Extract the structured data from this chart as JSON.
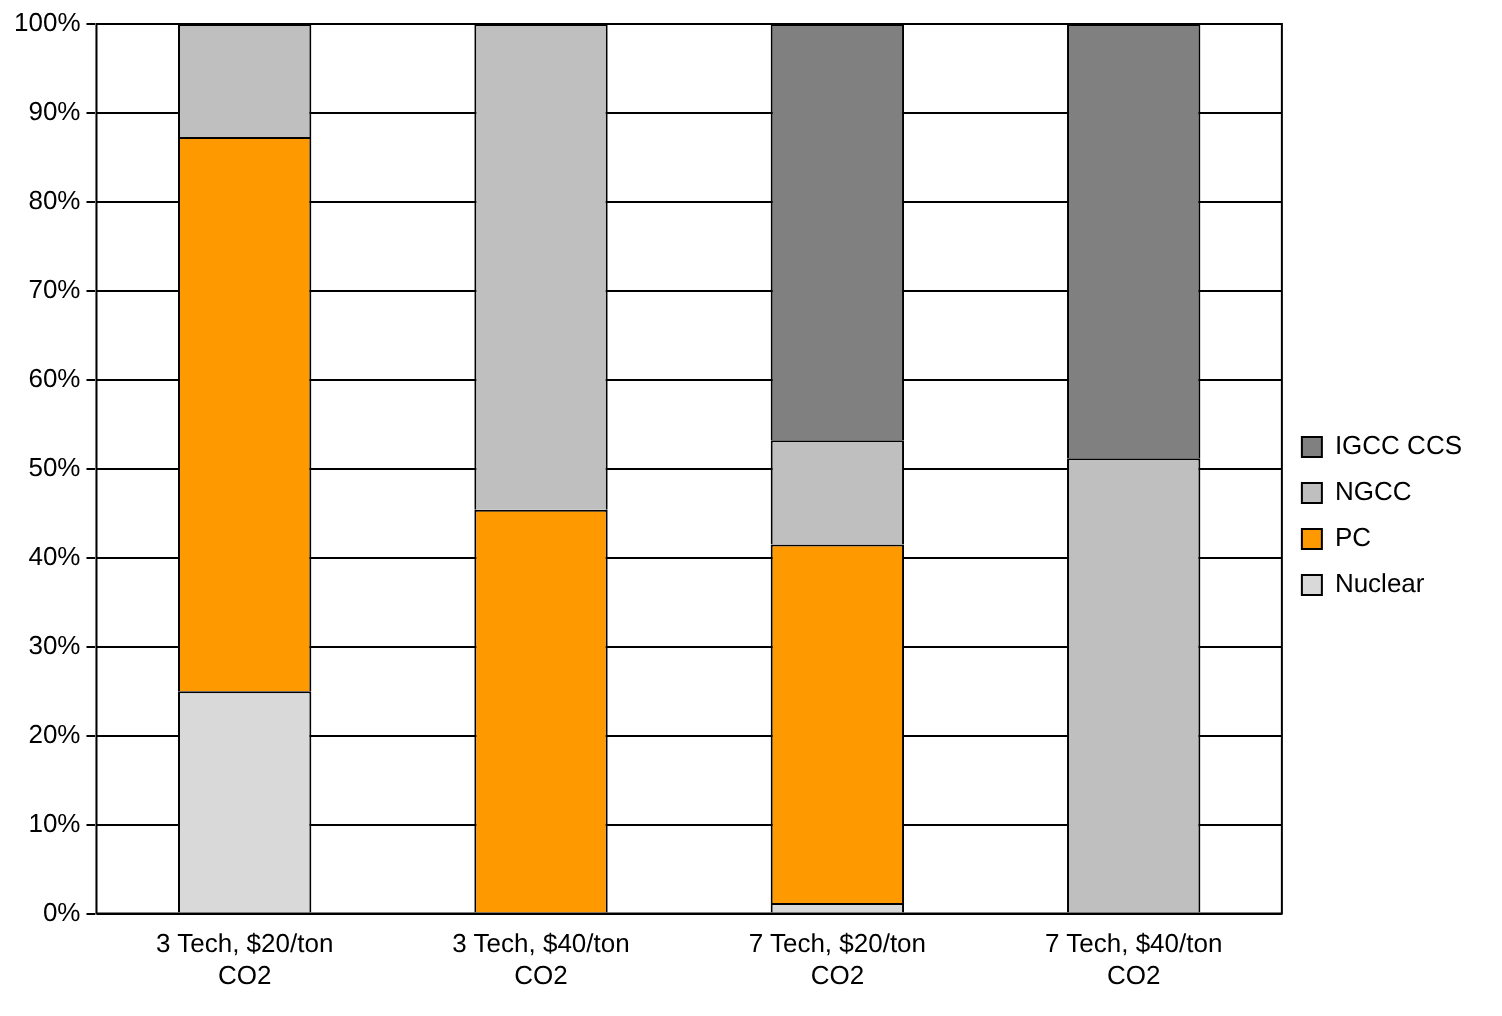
{
  "chart_data": {
    "type": "bar",
    "stacked": true,
    "categories": [
      "3 Tech, $20/ton CO2",
      "3 Tech, $40/ton CO2",
      "7 Tech, $20/ton CO2",
      "7 Tech, $40/ton CO2"
    ],
    "series": [
      {
        "name": "Nuclear",
        "color": "#d9d9d9",
        "values": [
          25,
          0,
          1.2,
          0
        ]
      },
      {
        "name": "PC",
        "color": "#ff9900",
        "values": [
          62.3,
          45.4,
          40.3,
          0
        ]
      },
      {
        "name": "NGCC",
        "color": "#bfbfbf",
        "values": [
          12.7,
          54.6,
          11.7,
          51.2
        ]
      },
      {
        "name": "IGCC CCS",
        "color": "#808080",
        "values": [
          0,
          0,
          46.8,
          48.8
        ]
      }
    ],
    "ylim": [
      0,
      100
    ],
    "yticks": [
      {
        "value": 0,
        "label": "0%"
      },
      {
        "value": 10,
        "label": "10%"
      },
      {
        "value": 20,
        "label": "20%"
      },
      {
        "value": 30,
        "label": "30%"
      },
      {
        "value": 40,
        "label": "40%"
      },
      {
        "value": 50,
        "label": "50%"
      },
      {
        "value": 60,
        "label": "60%"
      },
      {
        "value": 70,
        "label": "70%"
      },
      {
        "value": 80,
        "label": "80%"
      },
      {
        "value": 90,
        "label": "90%"
      },
      {
        "value": 100,
        "label": "100%"
      }
    ],
    "grid": "y",
    "legend": "right"
  }
}
